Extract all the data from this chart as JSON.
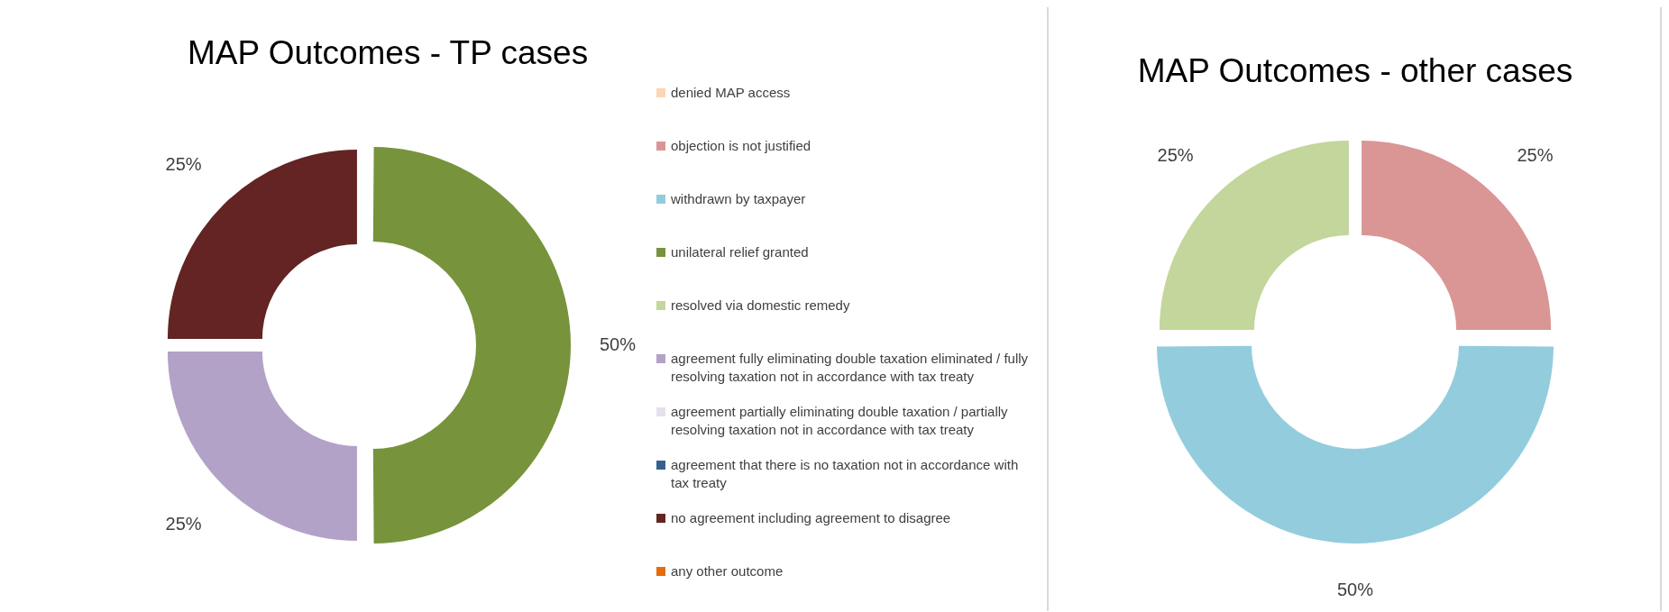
{
  "chart_data": [
    {
      "type": "donut",
      "title": "MAP Outcomes - TP cases",
      "categories": [
        "denied MAP access",
        "objection is not justified",
        "withdrawn by taxpayer",
        "unilateral relief granted",
        "resolved via domestic remedy",
        "agreement fully eliminating double taxation eliminated / fully resolving taxation not in accordance with tax treaty",
        "agreement partially eliminating double taxation / partially resolving taxation not in accordance with tax treaty",
        "agreement that there is no taxation not in accordance with tax treaty",
        "no agreement including agreement to disagree",
        "any other outcome"
      ],
      "values": [
        0,
        0,
        0,
        50,
        0,
        25,
        0,
        0,
        25,
        0
      ],
      "colors": [
        "#fcd5b5",
        "#d99694",
        "#93cddd",
        "#77933c",
        "#c3d69b",
        "#b3a2c7",
        "#e6e0ec",
        "#376092",
        "#632423",
        "#e46c0a"
      ],
      "value_labels": [
        null,
        null,
        null,
        "50%",
        null,
        "25%",
        null,
        null,
        "25%",
        null
      ],
      "legend": "right"
    },
    {
      "type": "donut",
      "title": "MAP Outcomes - other cases",
      "categories": [
        null,
        null,
        null
      ],
      "values": [
        25,
        50,
        25
      ],
      "colors": [
        "#d99694",
        "#93cddd",
        "#c3d69b"
      ],
      "value_labels": [
        "25%",
        "50%",
        "25%"
      ],
      "legend": false
    }
  ]
}
